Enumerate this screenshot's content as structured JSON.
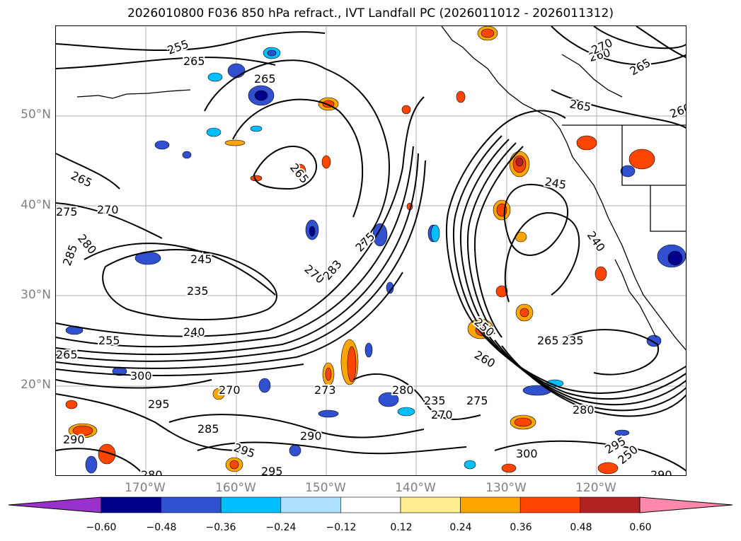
{
  "title": "2026010800 F036 850 hPa refract., IVT Landfall PC (2026011012 - 2026011312)",
  "map": {
    "lon_range": [
      -180,
      -110
    ],
    "lat_range": [
      10,
      60
    ],
    "lat_ticks": [
      {
        "value": 50,
        "label": "50°N"
      },
      {
        "value": 40,
        "label": "40°N"
      },
      {
        "value": 30,
        "label": "30°N"
      },
      {
        "value": 20,
        "label": "20°N"
      }
    ],
    "lon_ticks": [
      {
        "value": -170,
        "label": "170°W"
      },
      {
        "value": -160,
        "label": "160°W"
      },
      {
        "value": -150,
        "label": "150°W"
      },
      {
        "value": -140,
        "label": "140°W"
      },
      {
        "value": -130,
        "label": "130°W"
      },
      {
        "value": -120,
        "label": "120°W"
      }
    ],
    "contour_labels": [
      "255",
      "265",
      "260",
      "265",
      "270",
      "265",
      "260",
      "265",
      "265",
      "245",
      "240",
      "275",
      "270",
      "280",
      "285",
      "245",
      "235",
      "270",
      "283",
      "275",
      "240",
      "255",
      "265",
      "300",
      "265",
      "270",
      "273",
      "280",
      "250",
      "235",
      "260",
      "280",
      "275",
      "290",
      "300",
      "285",
      "290",
      "295",
      "280",
      "295",
      "295",
      "290",
      "295",
      "250",
      "265",
      "270",
      "235"
    ]
  },
  "colorbar": {
    "ticks": [
      "−0.60",
      "−0.48",
      "−0.36",
      "−0.24",
      "−0.12",
      "0.12",
      "0.24",
      "0.36",
      "0.48",
      "0.60"
    ],
    "colors": {
      "under": "#9932CC",
      "bins": [
        "#00008B",
        "#3050D0",
        "#00BFFF",
        "#ADE0FA",
        "#FFFFFF",
        "#FFEE90",
        "#FFA500",
        "#FF4500",
        "#B22222"
      ],
      "over": "#FF88AA"
    }
  }
}
